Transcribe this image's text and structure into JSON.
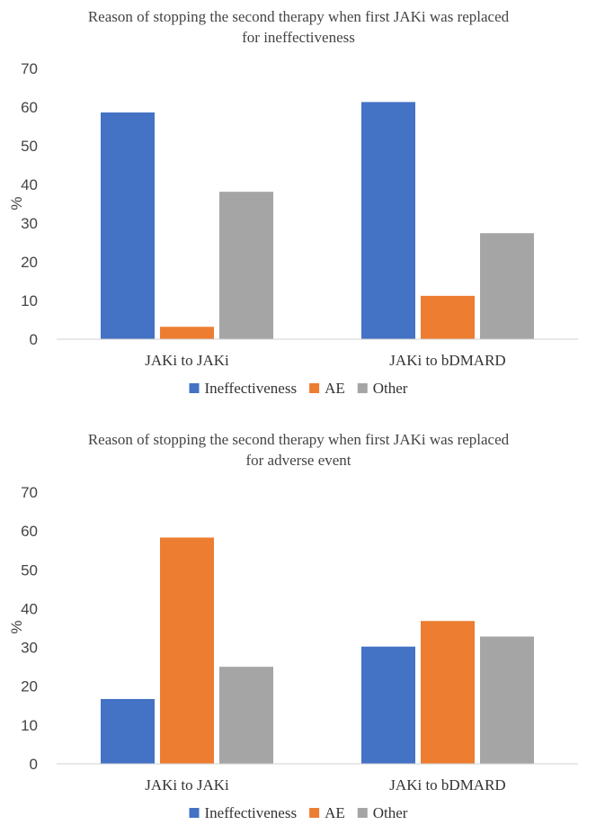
{
  "chart_data": [
    {
      "type": "bar",
      "title_lines": [
        "Reason of stopping the second therapy when first JAKi was replaced",
        "for ineffectiveness"
      ],
      "xlabel": "",
      "ylabel": "%",
      "ylim": [
        0,
        70
      ],
      "yticks": [
        "0",
        "10",
        "20",
        "30",
        "40",
        "50",
        "60",
        "70"
      ],
      "grid": false,
      "legend_position": "bottom",
      "categories": [
        "JAKi to JAKi",
        "JAKi to bDMARD"
      ],
      "series": [
        {
          "name": "Ineffectiveness",
          "color": "#4472C4",
          "values": [
            58.6,
            61.3
          ]
        },
        {
          "name": "AE",
          "color": "#ED7D31",
          "values": [
            3.2,
            11.2
          ]
        },
        {
          "name": "Other",
          "color": "#A5A5A5",
          "values": [
            38.1,
            27.4
          ]
        }
      ]
    },
    {
      "type": "bar",
      "title_lines": [
        "Reason of stopping the second therapy when first JAKi was replaced",
        "for adverse event"
      ],
      "xlabel": "",
      "ylabel": "%",
      "ylim": [
        0,
        70
      ],
      "yticks": [
        "0",
        "10",
        "20",
        "30",
        "40",
        "50",
        "60",
        "70"
      ],
      "grid": false,
      "legend_position": "bottom",
      "categories": [
        "JAKi to JAKi",
        "JAKi to bDMARD"
      ],
      "series": [
        {
          "name": "Ineffectiveness",
          "color": "#4472C4",
          "values": [
            16.7,
            30.2
          ]
        },
        {
          "name": "AE",
          "color": "#ED7D31",
          "values": [
            58.3,
            36.8
          ]
        },
        {
          "name": "Other",
          "color": "#A5A5A5",
          "values": [
            25.0,
            32.8
          ]
        }
      ]
    }
  ]
}
